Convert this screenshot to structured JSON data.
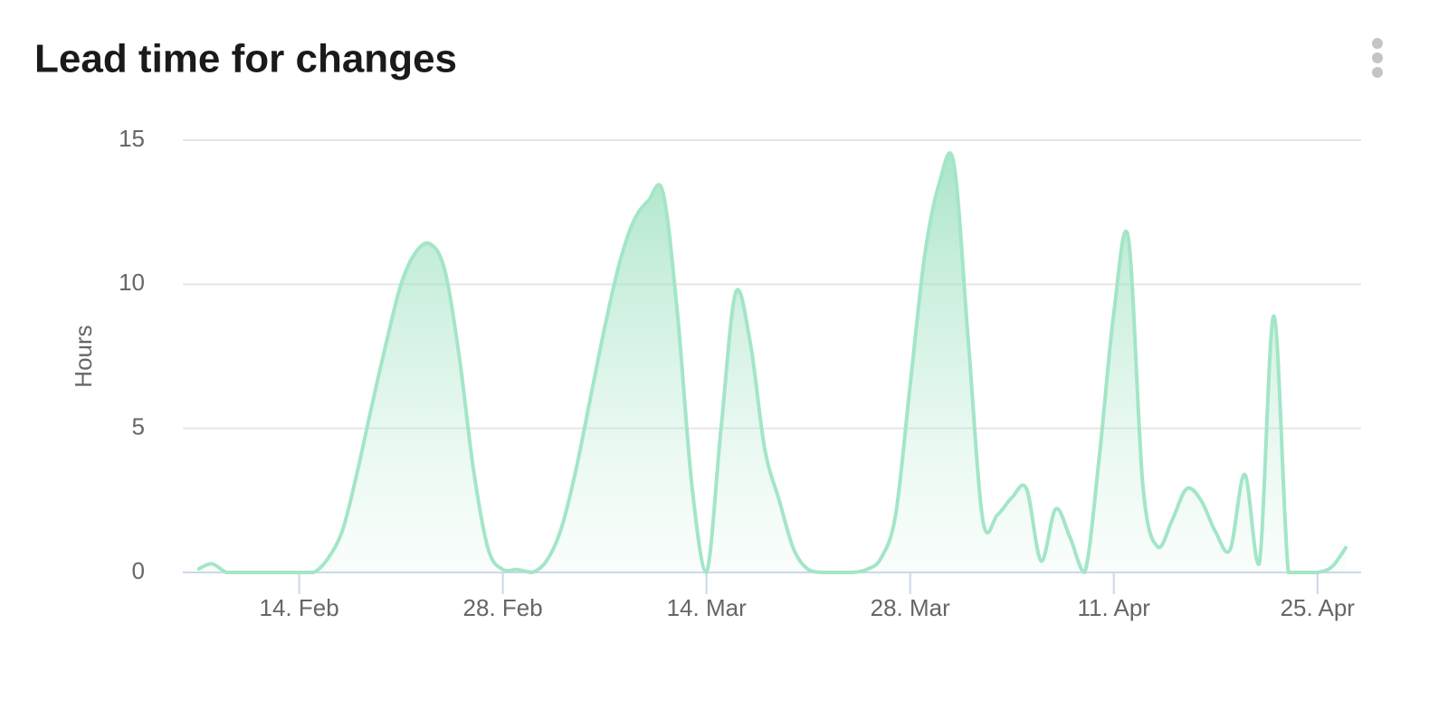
{
  "chart_data": {
    "type": "area",
    "title": "Lead time for changes",
    "y_label": "Hours",
    "color": "#a3e6c7",
    "x": [
      "02-07",
      "02-08",
      "02-09",
      "02-10",
      "02-11",
      "02-12",
      "02-13",
      "02-14",
      "02-15",
      "02-16",
      "02-17",
      "02-18",
      "02-19",
      "02-20",
      "02-21",
      "02-22",
      "02-23",
      "02-24",
      "02-25",
      "02-26",
      "02-27",
      "02-28",
      "03-01",
      "03-02",
      "03-03",
      "03-04",
      "03-05",
      "03-06",
      "03-07",
      "03-08",
      "03-09",
      "03-10",
      "03-11",
      "03-12",
      "03-13",
      "03-14",
      "03-15",
      "03-16",
      "03-17",
      "03-18",
      "03-19",
      "03-20",
      "03-21",
      "03-22",
      "03-23",
      "03-24",
      "03-25",
      "03-26",
      "03-27",
      "03-28",
      "03-29",
      "03-30",
      "03-31",
      "04-01",
      "04-02",
      "04-03",
      "04-04",
      "04-05",
      "04-06",
      "04-07",
      "04-08",
      "04-09",
      "04-10",
      "04-11",
      "04-12",
      "04-13",
      "04-14",
      "04-15",
      "04-16",
      "04-17",
      "04-18",
      "04-19",
      "04-20",
      "04-21",
      "04-22",
      "04-23",
      "04-24",
      "04-25",
      "04-26",
      "04-27"
    ],
    "values": [
      0.1,
      0.3,
      0,
      0,
      0,
      0,
      0,
      0,
      0,
      0.5,
      1.5,
      3.5,
      5.8,
      8,
      10,
      11.1,
      11.4,
      10.5,
      7.5,
      3.5,
      0.8,
      0.1,
      0.1,
      0,
      0.4,
      1.5,
      3.5,
      6,
      8.5,
      10.7,
      12.2,
      12.9,
      13.2,
      9,
      3,
      0,
      5,
      9.7,
      8,
      4.3,
      2.5,
      0.8,
      0.1,
      0,
      0,
      0,
      0.1,
      0.5,
      2,
      6.5,
      11,
      13.5,
      14.2,
      8,
      1.8,
      2,
      2.6,
      2.9,
      0.4,
      2.2,
      1.2,
      0,
      4,
      9,
      11.6,
      3,
      0.9,
      1.8,
      2.9,
      2.5,
      1.4,
      0.8,
      3.4,
      0.3,
      8.9,
      0,
      0,
      0,
      0.2,
      0.9
    ],
    "xlim": [
      "02-06",
      "04-28"
    ],
    "xticks": [
      {
        "value": "02-14",
        "label": "14. Feb"
      },
      {
        "value": "02-28",
        "label": "28. Feb"
      },
      {
        "value": "03-14",
        "label": "14. Mar"
      },
      {
        "value": "03-28",
        "label": "28. Mar"
      },
      {
        "value": "04-11",
        "label": "11. Apr"
      },
      {
        "value": "04-25",
        "label": "25. Apr"
      }
    ],
    "ylim": [
      0,
      15
    ],
    "yticks": [
      0,
      5,
      10,
      15
    ],
    "grid": true
  }
}
